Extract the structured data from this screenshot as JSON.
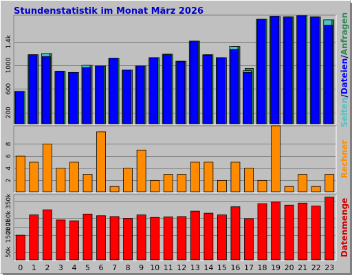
{
  "chart_data": [
    {
      "type": "bar",
      "title": "Stundenstatistik im Monat März 2026",
      "categories": [
        "0",
        "1",
        "2",
        "3",
        "4",
        "5",
        "6",
        "7",
        "8",
        "9",
        "10",
        "11",
        "12",
        "13",
        "14",
        "15",
        "16",
        "17",
        "18",
        "19",
        "20",
        "21",
        "22",
        "23"
      ],
      "series": [
        {
          "name": "Seiten",
          "color": "#4fc3c3",
          "values": [
            560,
            1180,
            1200,
            900,
            880,
            1000,
            990,
            1120,
            920,
            990,
            1130,
            1190,
            1070,
            1410,
            1180,
            1130,
            1320,
            910,
            1780,
            1830,
            1820,
            1840,
            1820,
            1770
          ]
        },
        {
          "name": "Dateien",
          "color": "#0000ff",
          "values": [
            560,
            1180,
            1150,
            900,
            880,
            960,
            990,
            1120,
            920,
            990,
            1130,
            1180,
            1060,
            1410,
            1170,
            1130,
            1270,
            880,
            1780,
            1830,
            1820,
            1840,
            1820,
            1680
          ]
        },
        {
          "name": "Anfragen",
          "color": "#2e8b57",
          "values": [
            560,
            1180,
            1200,
            900,
            880,
            1000,
            990,
            1120,
            920,
            990,
            1130,
            1190,
            1070,
            1410,
            1180,
            1130,
            1320,
            950,
            1780,
            1830,
            1820,
            1840,
            1820,
            1770
          ]
        }
      ],
      "yticks": [
        "200",
        "600",
        "1000",
        "1.4k"
      ],
      "ytick_values": [
        200,
        600,
        1000,
        1400
      ],
      "ylim": [
        0,
        1850
      ],
      "side_label_parts": [
        "Seiten",
        "/",
        "Dateien",
        "/",
        "Anfragen"
      ],
      "side_label_colors": [
        "#4fc3c3",
        "#000080",
        "#0000ff",
        "#000080",
        "#2e8b57"
      ]
    },
    {
      "type": "bar",
      "categories": [
        "0",
        "1",
        "2",
        "3",
        "4",
        "5",
        "6",
        "7",
        "8",
        "9",
        "10",
        "11",
        "12",
        "13",
        "14",
        "15",
        "16",
        "17",
        "18",
        "19",
        "20",
        "21",
        "22",
        "23"
      ],
      "series": [
        {
          "name": "Rechner",
          "color": "#ff8c00",
          "values": [
            6,
            5,
            8,
            4,
            5,
            3,
            10,
            1,
            4,
            7,
            2,
            3,
            3,
            5,
            5,
            2,
            5,
            4,
            2,
            11,
            1,
            3,
            1,
            3
          ]
        }
      ],
      "yticks": [
        "2",
        "4",
        "6",
        "8"
      ],
      "ytick_values": [
        2,
        4,
        6,
        8
      ],
      "ylim": [
        0,
        11
      ],
      "side_label": "Rechner",
      "side_label_color": "#ff8c00"
    },
    {
      "type": "bar",
      "categories": [
        "0",
        "1",
        "2",
        "3",
        "4",
        "5",
        "6",
        "7",
        "8",
        "9",
        "10",
        "11",
        "12",
        "13",
        "14",
        "15",
        "16",
        "17",
        "18",
        "19",
        "20",
        "21",
        "22",
        "23"
      ],
      "series": [
        {
          "name": "Datenmenge",
          "color": "#ff0000",
          "values": [
            150,
            270,
            300,
            240,
            235,
            275,
            265,
            260,
            250,
            270,
            255,
            258,
            260,
            292,
            280,
            270,
            318,
            248,
            336,
            346,
            328,
            340,
            322,
            375
          ]
        }
      ],
      "yticks": [
        "50k",
        "150k",
        "200k",
        "250k",
        "350k"
      ],
      "ytick_values": [
        50,
        150,
        200,
        250,
        350
      ],
      "ylim": [
        0,
        390
      ],
      "side_label": "Datenmenge",
      "side_label_color": "#cc0000"
    }
  ]
}
